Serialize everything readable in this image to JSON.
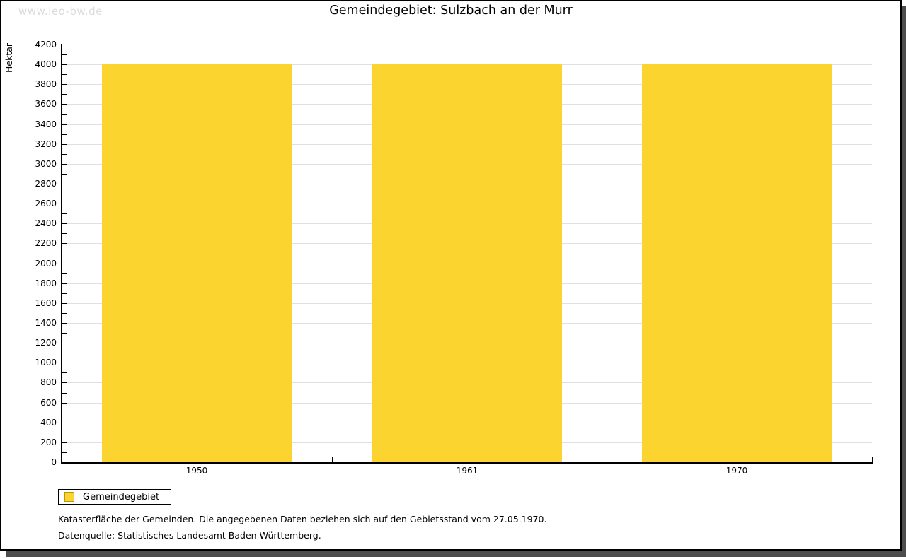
{
  "page": {
    "watermark": "www.leo-bw.de",
    "title": "Gemeindegebiet: Sulzbach an der Murr"
  },
  "chart_data": {
    "type": "bar",
    "title": "Gemeindegebiet: Sulzbach an der Murr",
    "categories": [
      "1950",
      "1961",
      "1970"
    ],
    "series": [
      {
        "name": "Gemeindegebiet",
        "values": [
          4005,
          4005,
          4005
        ]
      }
    ],
    "xlabel": "",
    "ylabel": "Hektar",
    "ylim": [
      0,
      4200
    ],
    "ytick_step": 200,
    "minor_tick_step": 100,
    "grid": true,
    "legend_position": "bottom-left",
    "bar_color": "#FCD42F"
  },
  "legend": {
    "items": [
      {
        "label": "Gemeindegebiet",
        "swatch_color": "#FCD42F",
        "swatch_border": "#B8960C"
      }
    ]
  },
  "footnotes": {
    "line1": "Katasterfläche der Gemeinden. Die angegebenen Daten beziehen sich auf den Gebietsstand vom 27.05.1970.",
    "line2": "Datenquelle: Statistisches Landesamt Baden-Württemberg."
  },
  "colors": {
    "bar": "#FCD42F",
    "legend_swatch_border": "#B8960C",
    "gridline": "#E0E0E0",
    "axis": "#000000",
    "watermark_text": "#DCDCDC",
    "background": "#FFFFFF"
  }
}
